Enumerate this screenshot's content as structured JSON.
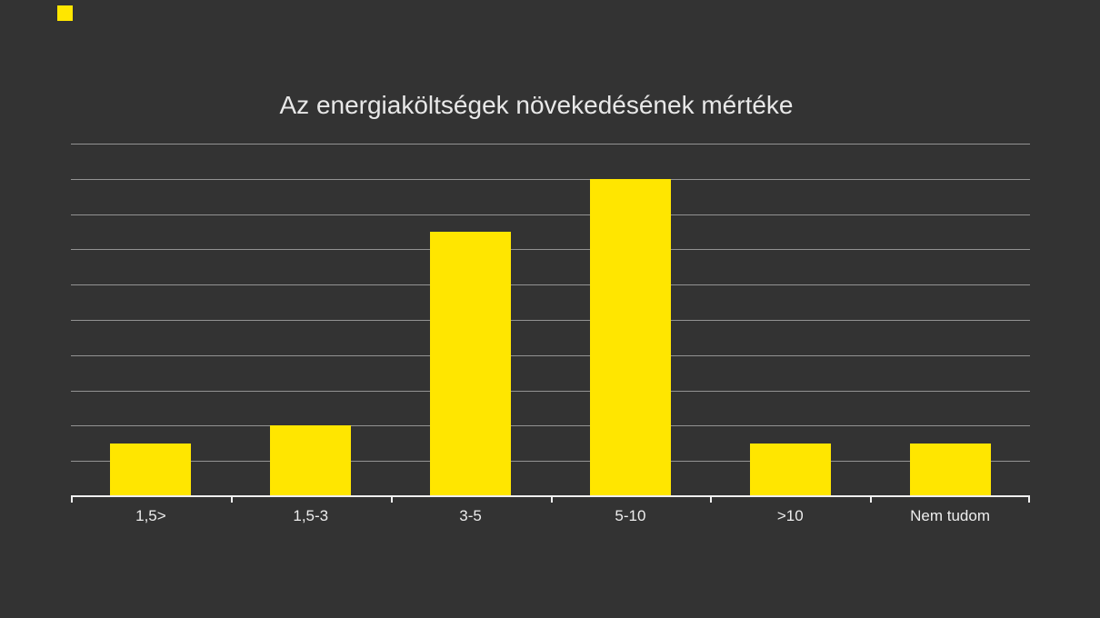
{
  "page": {
    "background_color": "#333333"
  },
  "logo": {
    "icon": "yellow-square-logo-mark",
    "color": "#FFE600"
  },
  "chart_data": {
    "type": "bar",
    "title": "Az energiaköltségek növekedésének mértéke",
    "categories": [
      "1,5>",
      "1,5-3",
      "3-5",
      "5-10",
      ">10",
      "Nem tudom"
    ],
    "values": [
      1.5,
      2,
      7.5,
      9,
      1.5,
      1.5
    ],
    "xlabel": "",
    "ylabel": "",
    "ylim": [
      0,
      10
    ],
    "gridline_interval": 1,
    "gridline_count": 10,
    "grid": "horizontal",
    "legend": "none",
    "y_tick_labels_visible": false,
    "bar_color": "#FFE600",
    "gridline_color": "#939393",
    "axis_color": "#F0F0F0",
    "text_color": "#EDEDED",
    "title_color": "#E8E8E8"
  }
}
